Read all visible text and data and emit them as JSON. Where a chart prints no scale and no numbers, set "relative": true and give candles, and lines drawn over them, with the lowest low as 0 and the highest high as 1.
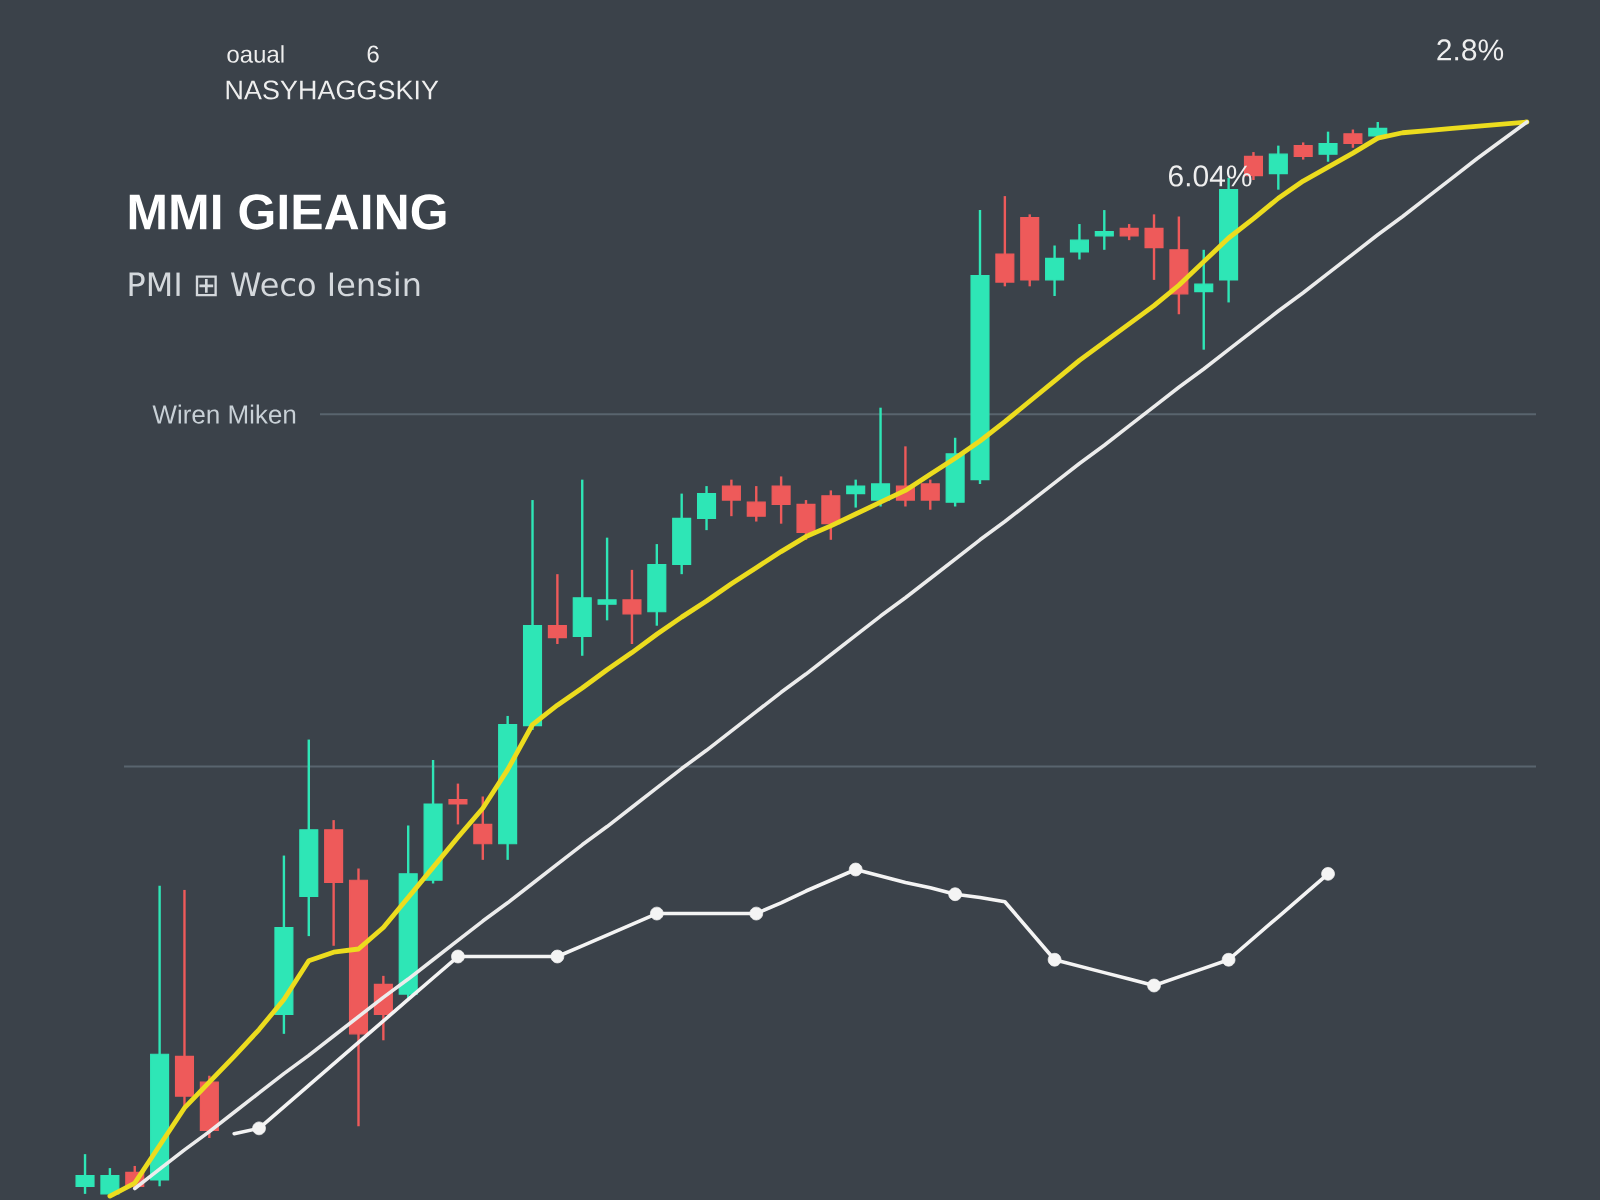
{
  "chart_data": {
    "type": "candlestick",
    "title": "MMI GIEAING",
    "subtitle": "PMI ⊞ Weco Iensin",
    "annotations": [
      "oaual",
      "6",
      "NASYHAGGSKIY",
      "6.04%",
      "2.8%"
    ],
    "relative": true,
    "categories": [
      null,
      null,
      null,
      null,
      null,
      null,
      null,
      null,
      null,
      null,
      null,
      null,
      null,
      null,
      null,
      null,
      null,
      null,
      null,
      null,
      null,
      null,
      null,
      null,
      null,
      null,
      null,
      null,
      null,
      null,
      null,
      null,
      null,
      null,
      null,
      null,
      null,
      null,
      null,
      null,
      null,
      null,
      null,
      null,
      null,
      null,
      null,
      null,
      null,
      null,
      null,
      null,
      null,
      null,
      null,
      null,
      null,
      null,
      null,
      null
    ],
    "ohlc": [
      [
        0.009,
        0.039,
        0.002,
        0.019
      ],
      [
        0.002,
        0.026,
        0,
        0.019
      ],
      [
        0.022,
        0.028,
        0.006,
        0.009
      ],
      [
        0.015,
        0.289,
        0.009,
        0.132
      ],
      [
        0.13,
        0.285,
        0.08,
        0.093
      ],
      [
        0.106,
        0.112,
        0.054,
        0.061
      ],
      null,
      null,
      [
        0.169,
        0.317,
        0.151,
        0.25
      ],
      [
        0.279,
        0.425,
        0.242,
        0.341
      ],
      [
        0.341,
        0.35,
        0.233,
        0.292
      ],
      [
        0.294,
        0.305,
        0.065,
        0.151
      ],
      [
        0.197,
        0.205,
        0.145,
        0.169
      ],
      [
        0.188,
        0.345,
        0.182,
        0.3
      ],
      [
        0.294,
        0.406,
        0.291,
        0.365
      ],
      [
        0.369,
        0.384,
        0.346,
        0.365
      ],
      [
        0.346,
        0.372,
        0.313,
        0.328
      ],
      [
        0.328,
        0.447,
        0.313,
        0.439
      ],
      [
        0.438,
        0.648,
        0.434,
        0.531
      ],
      [
        0.531,
        0.579,
        0.514,
        0.52
      ],
      [
        0.521,
        0.667,
        0.503,
        0.557
      ],
      [
        0.551,
        0.613,
        0.536,
        0.555
      ],
      [
        0.555,
        0.583,
        0.514,
        0.542
      ],
      [
        0.544,
        0.607,
        0.531,
        0.588
      ],
      [
        0.588,
        0.654,
        0.579,
        0.631
      ],
      [
        0.631,
        0.661,
        0.62,
        0.654
      ],
      [
        0.661,
        0.667,
        0.633,
        0.648
      ],
      [
        0.646,
        0.661,
        0.628,
        0.633
      ],
      [
        0.661,
        0.67,
        0.626,
        0.644
      ],
      [
        0.644,
        0.648,
        0.611,
        0.618
      ],
      [
        0.652,
        0.657,
        0.611,
        0.626
      ],
      [
        0.654,
        0.667,
        0.641,
        0.661
      ],
      [
        0.648,
        0.734,
        0.642,
        0.663
      ],
      [
        0.661,
        0.698,
        0.642,
        0.648
      ],
      [
        0.663,
        0.667,
        0.639,
        0.648
      ],
      [
        0.646,
        0.706,
        0.642,
        0.691
      ],
      [
        0.667,
        0.918,
        0.663,
        0.857
      ],
      [
        0.877,
        0.931,
        0.847,
        0.851
      ],
      [
        0.911,
        0.914,
        0.847,
        0.853
      ],
      [
        0.853,
        0.885,
        0.838,
        0.873
      ],
      [
        0.879,
        0.905,
        0.872,
        0.89
      ],
      [
        0.894,
        0.918,
        0.881,
        0.898
      ],
      [
        0.901,
        0.905,
        0.89,
        0.894
      ],
      [
        0.901,
        0.914,
        0.853,
        0.883
      ],
      [
        0.881,
        0.912,
        0.821,
        0.84
      ],
      [
        0.842,
        0.881,
        0.788,
        0.849
      ],
      [
        0.853,
        0.948,
        0.832,
        0.937
      ],
      [
        0.968,
        0.972,
        0.946,
        0.95
      ],
      [
        0.952,
        0.978,
        0.937,
        0.97
      ],
      [
        0.978,
        0.981,
        0.965,
        0.968
      ],
      [
        0.97,
        0.991,
        0.963,
        0.98
      ],
      [
        0.989,
        0.993,
        0.976,
        0.98
      ],
      [
        0.987,
        1.0,
        0.983,
        0.994
      ],
      null,
      null,
      null,
      null,
      null,
      null,
      null
    ],
    "colors": [
      "#2ee6b6",
      "#2ee6b6",
      "#ee5a5a",
      "#2ee6b6",
      "#ee5a5a",
      "#ee5a5a",
      null,
      null,
      "#2ee6b6",
      "#2ee6b6",
      "#ee5a5a",
      "#ee5a5a",
      "#ee5a5a",
      "#2ee6b6",
      "#2ee6b6",
      "#ee5a5a",
      "#ee5a5a",
      "#2ee6b6",
      "#2ee6b6",
      "#ee5a5a",
      "#2ee6b6",
      "#2ee6b6",
      "#ee5a5a",
      "#2ee6b6",
      "#2ee6b6",
      "#2ee6b6",
      "#ee5a5a",
      "#ee5a5a",
      "#ee5a5a",
      "#ee5a5a",
      "#ee5a5a",
      "#2ee6b6",
      "#2ee6b6",
      "#ee5a5a",
      "#ee5a5a",
      "#2ee6b6",
      "#2ee6b6",
      "#ee5a5a",
      "#ee5a5a",
      "#2ee6b6",
      "#2ee6b6",
      "#2ee6b6",
      "#ee5a5a",
      "#ee5a5a",
      "#ee5a5a",
      "#2ee6b6",
      "#2ee6b6",
      "#ee5a5a",
      "#2ee6b6",
      "#ee5a5a",
      "#2ee6b6",
      "#ee5a5a",
      "#2ee6b6",
      null,
      null,
      null,
      null,
      null,
      null,
      null
    ],
    "series": [
      {
        "type": "line",
        "color": "#ecdc1e",
        "values": [
          null,
          0,
          0.012,
          0.047,
          0.082,
          0.106,
          0.13,
          0.155,
          0.183,
          0.219,
          0.227,
          0.23,
          0.25,
          0.278,
          0.306,
          0.334,
          0.361,
          0.397,
          0.439,
          0.457,
          0.473,
          0.49,
          0.506,
          0.523,
          0.539,
          0.554,
          0.57,
          0.585,
          0.6,
          0.614,
          0.624,
          0.635,
          0.646,
          0.657,
          0.672,
          0.687,
          0.703,
          0.721,
          0.74,
          0.759,
          0.778,
          0.795,
          0.812,
          0.829,
          0.848,
          0.87,
          0.892,
          0.91,
          0.929,
          0.945,
          0.958,
          0.971,
          0.985,
          0.99,
          0.992,
          0.994,
          0.996,
          0.998,
          1.0,
          null
        ]
      },
      {
        "type": "line",
        "color": "#ececec",
        "values": [
          null,
          null,
          0.007,
          0.025,
          0.043,
          0.06,
          0.078,
          0.096,
          0.114,
          0.131,
          0.149,
          0.167,
          0.185,
          0.202,
          0.22,
          0.238,
          0.256,
          0.273,
          0.291,
          0.309,
          0.327,
          0.344,
          0.362,
          0.38,
          0.398,
          0.415,
          0.433,
          0.451,
          0.469,
          0.486,
          0.504,
          0.522,
          0.54,
          0.557,
          0.575,
          0.593,
          0.611,
          0.628,
          0.646,
          0.664,
          0.682,
          0.699,
          0.717,
          0.735,
          0.753,
          0.77,
          0.788,
          0.806,
          0.824,
          0.841,
          0.859,
          0.877,
          0.895,
          0.912,
          0.93,
          0.948,
          0.966,
          0.983,
          1.0,
          null
        ]
      },
      {
        "type": "line",
        "color": "#f4f4f4",
        "values": [
          null,
          null,
          null,
          null,
          null,
          null,
          0.058,
          0.063,
          0.083,
          0.103,
          0.123,
          0.143,
          0.163,
          0.183,
          0.203,
          0.223,
          0.223,
          0.223,
          0.223,
          0.223,
          0.233,
          0.243,
          0.253,
          0.263,
          0.263,
          0.263,
          0.263,
          0.263,
          0.273,
          0.284,
          0.294,
          0.304,
          0.298,
          0.292,
          0.287,
          0.281,
          0.278,
          0.274,
          0.247,
          0.22,
          0.214,
          0.208,
          0.202,
          0.196,
          0.204,
          0.212,
          0.22,
          0.24,
          0.26,
          0.28,
          0.3,
          null,
          null,
          null,
          null,
          null,
          null,
          null,
          null,
          null
        ]
      },
      {
        "type": "scatter",
        "color": "#f4f4f4",
        "marker": "circle",
        "values": [
          null,
          null,
          null,
          null,
          null,
          null,
          null,
          0.063,
          null,
          null,
          null,
          null,
          null,
          null,
          null,
          0.223,
          null,
          null,
          null,
          0.223,
          null,
          null,
          null,
          0.263,
          null,
          null,
          null,
          0.263,
          null,
          null,
          null,
          0.304,
          null,
          null,
          null,
          0.281,
          null,
          null,
          null,
          0.22,
          null,
          null,
          null,
          0.196,
          null,
          null,
          0.22,
          null,
          null,
          null,
          0.3,
          null,
          null,
          null,
          null,
          null,
          null,
          null,
          null,
          null
        ]
      }
    ],
    "ref_lines": [
      {
        "axis": "y",
        "value": 0.728,
        "label": "Wiren Miken",
        "color": "#59646e"
      },
      {
        "axis": "y",
        "value": 0.4,
        "color": "#59646e"
      }
    ]
  }
}
